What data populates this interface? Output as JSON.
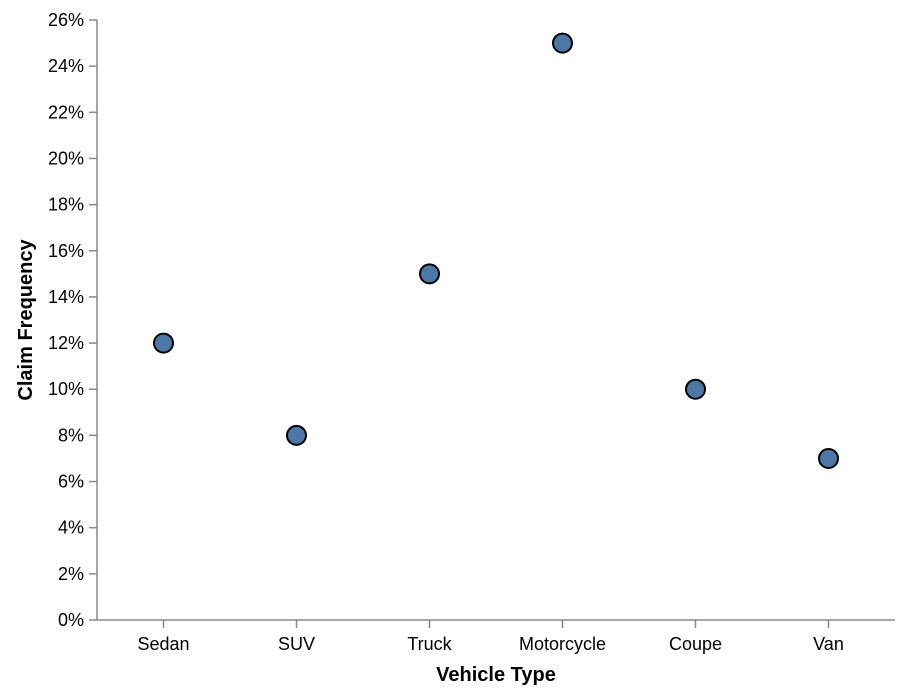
{
  "chart_data": {
    "type": "scatter",
    "categories": [
      "Sedan",
      "SUV",
      "Truck",
      "Motorcycle",
      "Coupe",
      "Van"
    ],
    "values": [
      12,
      8,
      15,
      25,
      10,
      7
    ],
    "xlabel": "Vehicle Type",
    "ylabel": "Claim Frequency",
    "ylim": [
      0,
      26
    ],
    "y_ticks": [
      0,
      2,
      4,
      6,
      8,
      10,
      12,
      14,
      16,
      18,
      20,
      22,
      24,
      26
    ],
    "y_tick_suffix": "%",
    "grid": false,
    "legend": "none",
    "point_color": "#4c78a8"
  }
}
